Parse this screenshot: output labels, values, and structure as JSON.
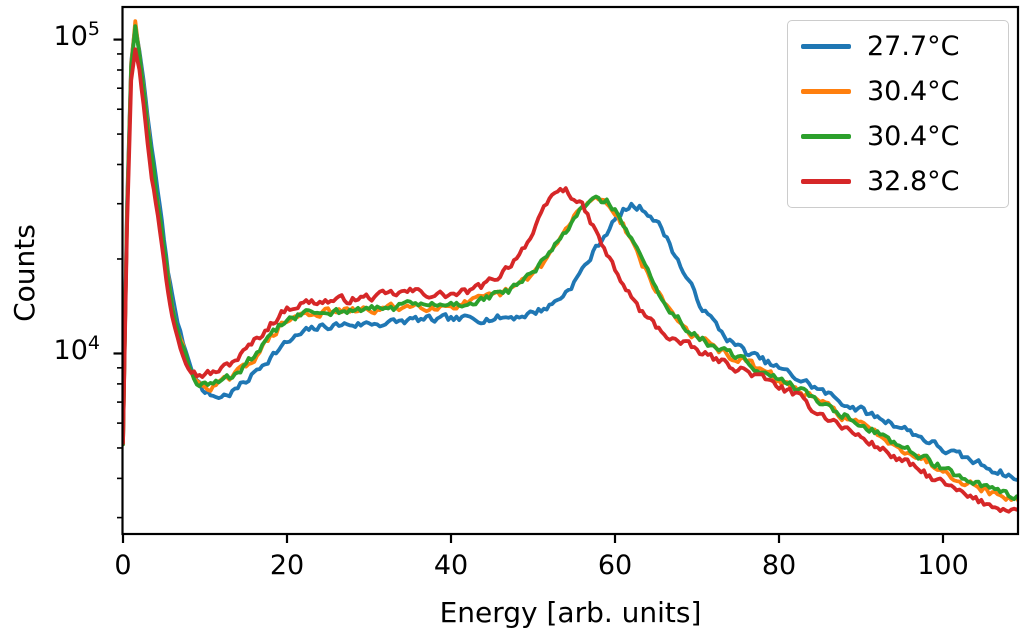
{
  "chart_data": {
    "type": "line",
    "title": "",
    "xlabel": "Energy [arb. units]",
    "ylabel": "Counts",
    "yscale": "log",
    "grid": false,
    "xlim": [
      0,
      110
    ],
    "ylim": [
      2660,
      127000
    ],
    "x_ticks": [
      0,
      20,
      40,
      60,
      80,
      100
    ],
    "y_ticks": [
      {
        "value": 10000,
        "mant": "10",
        "exp": "4"
      },
      {
        "value": 100000,
        "mant": "10",
        "exp": "5"
      }
    ],
    "legend": {
      "location": "upper right"
    },
    "x": [
      0,
      0.5,
      1,
      1.5,
      2,
      2.5,
      3,
      3.5,
      4,
      4.5,
      5,
      5.5,
      6,
      7,
      8,
      9,
      10,
      11,
      12,
      13,
      14,
      15,
      16,
      17,
      18,
      19,
      20,
      21,
      22,
      23,
      24,
      25,
      26,
      27,
      28,
      29,
      30,
      31,
      32,
      33,
      34,
      35,
      36,
      37,
      38,
      39,
      40,
      41,
      42,
      43,
      44,
      45,
      46,
      47,
      48,
      49,
      50,
      51,
      52,
      53,
      54,
      55,
      56,
      57,
      58,
      59,
      60,
      61,
      62,
      63,
      64,
      65,
      66,
      67,
      68,
      69,
      70,
      71,
      72,
      73,
      74,
      75,
      76,
      78,
      80,
      82,
      84,
      86,
      88,
      90,
      92,
      94,
      96,
      98,
      100,
      102,
      104,
      106,
      108,
      110
    ],
    "series": [
      {
        "name": "27.7°C",
        "color": "#1f77b4",
        "values": [
          5200,
          30000,
          85000,
          111000,
          93000,
          74000,
          57000,
          45000,
          36000,
          29500,
          23000,
          18500,
          15200,
          11600,
          9600,
          8300,
          7500,
          7300,
          7300,
          7450,
          7750,
          8150,
          8650,
          9250,
          9800,
          10300,
          10800,
          11200,
          11600,
          11900,
          12100,
          12250,
          12300,
          12350,
          12400,
          12400,
          12450,
          12500,
          12500,
          12550,
          12650,
          12750,
          12800,
          12800,
          12750,
          12800,
          12850,
          12800,
          12900,
          12950,
          13000,
          12950,
          13000,
          13050,
          13150,
          13300,
          13500,
          13800,
          14200,
          14800,
          15700,
          16900,
          18400,
          20200,
          22300,
          24500,
          26600,
          28400,
          29400,
          29200,
          28300,
          26500,
          24200,
          21500,
          19000,
          16800,
          15000,
          13600,
          12600,
          11700,
          11000,
          10500,
          10100,
          9500,
          8950,
          8400,
          7900,
          7400,
          6950,
          6600,
          6250,
          6000,
          5650,
          5300,
          4950,
          4700,
          4500,
          4300,
          4100,
          3800
        ]
      },
      {
        "name": "30.4°C",
        "color": "#ff7f0e",
        "values": [
          5150,
          28500,
          83000,
          114000,
          90500,
          70500,
          53000,
          41800,
          33600,
          27600,
          21600,
          17300,
          14250,
          11050,
          9150,
          8050,
          7850,
          7900,
          8050,
          8300,
          8650,
          9150,
          9750,
          10450,
          11250,
          12050,
          12650,
          13050,
          13300,
          13450,
          13500,
          13550,
          13600,
          13600,
          13650,
          13700,
          13750,
          13800,
          13900,
          14000,
          14100,
          14200,
          14250,
          14200,
          14150,
          14200,
          14250,
          14350,
          14500,
          14650,
          14850,
          15100,
          15400,
          15800,
          16350,
          17050,
          17950,
          19150,
          20650,
          22450,
          24650,
          26950,
          29150,
          30850,
          31150,
          30350,
          28350,
          25850,
          23050,
          20250,
          17850,
          15950,
          14550,
          13450,
          12550,
          11750,
          11250,
          10850,
          10450,
          10150,
          9850,
          9600,
          9400,
          8750,
          8250,
          7700,
          7200,
          6750,
          6300,
          5900,
          5550,
          5200,
          4850,
          4550,
          4250,
          4000,
          3800,
          3600,
          3450,
          3350
        ]
      },
      {
        "name": "30.4°C",
        "color": "#2ca02c",
        "values": [
          5150,
          28000,
          82000,
          110500,
          90000,
          70000,
          53000,
          41500,
          33500,
          27500,
          21500,
          17200,
          14200,
          11000,
          9200,
          8100,
          7900,
          7950,
          8100,
          8350,
          8700,
          9200,
          9800,
          10500,
          11300,
          12100,
          12700,
          13100,
          13350,
          13500,
          13550,
          13600,
          13650,
          13650,
          13700,
          13750,
          13800,
          13850,
          13950,
          14050,
          14150,
          14250,
          14300,
          14250,
          14200,
          14250,
          14300,
          14400,
          14550,
          14700,
          14900,
          15150,
          15450,
          15850,
          16400,
          17100,
          18000,
          19200,
          20700,
          22500,
          24700,
          27000,
          29200,
          30900,
          31200,
          30400,
          28400,
          25900,
          23100,
          20300,
          17900,
          16000,
          14600,
          13500,
          12600,
          11800,
          11300,
          10900,
          10500,
          10200,
          9900,
          9650,
          9450,
          8800,
          8300,
          7750,
          7250,
          6800,
          6350,
          5950,
          5600,
          5250,
          4900,
          4600,
          4300,
          4050,
          3850,
          3650,
          3500,
          3400
        ]
      },
      {
        "name": "32.8°C",
        "color": "#d62728",
        "values": [
          5200,
          26000,
          75000,
          94000,
          80000,
          62000,
          47000,
          37000,
          30000,
          24500,
          19500,
          15800,
          13300,
          10800,
          9200,
          8600,
          8600,
          8700,
          8900,
          9250,
          9700,
          10250,
          10900,
          11600,
          12400,
          13200,
          13900,
          14250,
          14500,
          14600,
          14650,
          14700,
          14750,
          14800,
          14900,
          15000,
          15100,
          15150,
          15300,
          15450,
          15600,
          15750,
          15700,
          15550,
          15400,
          15350,
          15400,
          15500,
          15700,
          16000,
          16450,
          17100,
          17900,
          19000,
          20400,
          22200,
          24000,
          27200,
          30700,
          33200,
          33100,
          31500,
          29300,
          26300,
          23300,
          20700,
          18400,
          16500,
          15100,
          13800,
          12900,
          12200,
          11600,
          11200,
          10800,
          10500,
          10200,
          9900,
          9650,
          9400,
          9200,
          9000,
          8800,
          8300,
          7850,
          7350,
          6700,
          6250,
          5800,
          5400,
          5050,
          4700,
          4400,
          4100,
          3850,
          3600,
          3400,
          3280,
          3200,
          3150
        ]
      }
    ]
  }
}
